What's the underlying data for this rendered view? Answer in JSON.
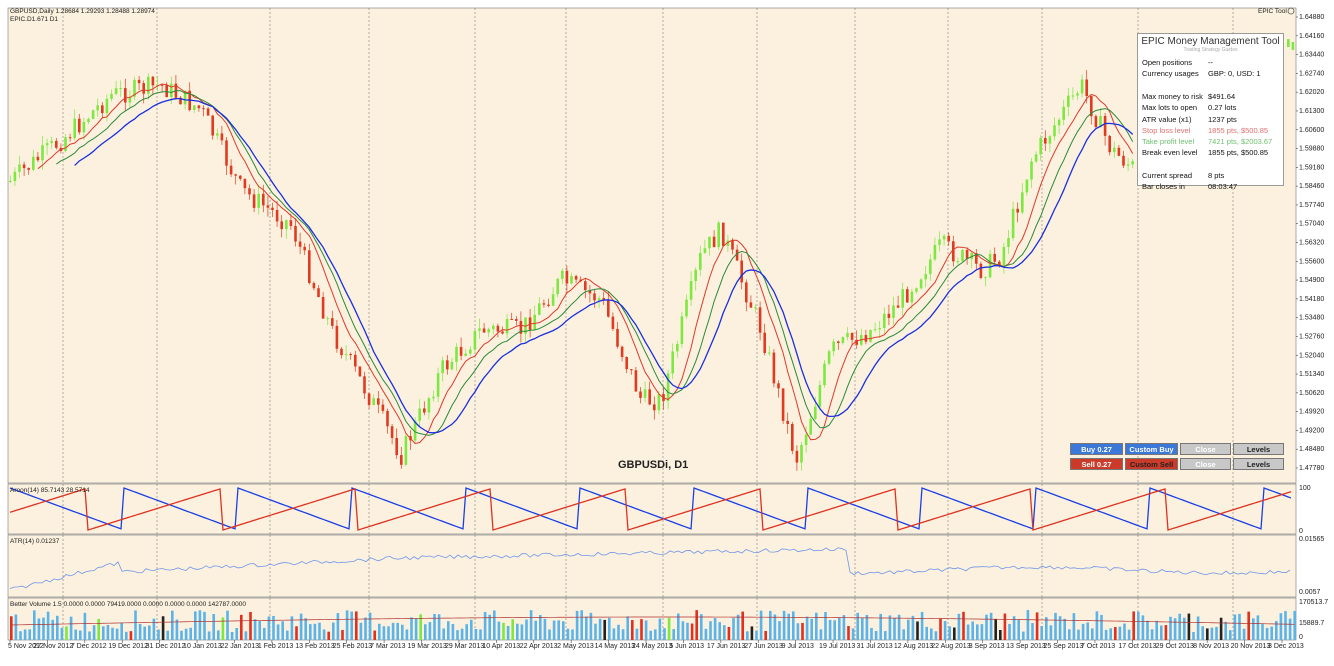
{
  "header": {
    "symbol_line": "GBPUSD,Daily 1.28684 1.29293 1.28488 1.28974",
    "indicator_line": "EPIC.D1.671 D1",
    "tool_label": "EPIC Tool"
  },
  "watermark": "GBPUSDi, D1",
  "price_axis": [
    "1.64880",
    "1.64160",
    "1.63440",
    "1.62740",
    "1.62020",
    "1.61300",
    "1.60600",
    "1.59880",
    "1.59180",
    "1.58460",
    "1.57740",
    "1.57040",
    "1.56320",
    "1.55600",
    "1.54900",
    "1.54180",
    "1.53480",
    "1.52760",
    "1.52040",
    "1.51340",
    "1.50620",
    "1.49920",
    "1.49200",
    "1.48480",
    "1.47780"
  ],
  "aroon": {
    "label": "Aroon(14) 85.7143 28.5714",
    "axis_top": "100",
    "axis_bottom": "0",
    "colors": {
      "up": "#1a3fe6",
      "down": "#e03020"
    }
  },
  "atr": {
    "label": "ATR(14) 0.01237",
    "axis_top": "0.01565",
    "axis_bottom": "0.0057",
    "color": "#6f95e8"
  },
  "volume": {
    "label": "Better Volume 1.5 0.0000 0.0000 79419.0000 0.0000 0.0000 0.0000 142787.0000",
    "axis_top": "170513.7",
    "axis_mid": "15889.7",
    "axis_bottom": "0"
  },
  "date_axis": [
    "5 Nov 2012",
    "27 Nov 2012",
    "7 Dec 2012",
    "19 Dec 2012",
    "31 Dec 2012",
    "10 Jan 2013",
    "22 Jan 2013",
    "1 Feb 2013",
    "13 Feb 2013",
    "25 Feb 2013",
    "7 Mar 2013",
    "19 Mar 2013",
    "29 Mar 2013",
    "10 Apr 2013",
    "22 Apr 2013",
    "2 May 2013",
    "14 May 2013",
    "24 May 2013",
    "5 Jun 2013",
    "17 Jun 2013",
    "27 Jun 2013",
    "9 Jul 2013",
    "19 Jul 2013",
    "31 Jul 2013",
    "12 Aug 2013",
    "22 Aug 2013",
    "3 Sep 2013",
    "13 Sep 2013",
    "25 Sep 2013",
    "7 Oct 2013",
    "17 Oct 2013",
    "29 Oct 2013",
    "8 Nov 2013",
    "20 Nov 2013",
    "3 Dec 2013"
  ],
  "money_tool": {
    "title": "EPIC Money Management Tool",
    "subtitle": "Trading Strategy Guides",
    "rows": [
      {
        "key": "Open positions",
        "value": "--",
        "color": "#111111"
      },
      {
        "key": "Currency usages",
        "value": "GBP: 0, USD: 1",
        "color": "#111111"
      },
      {
        "key": "",
        "value": "",
        "color": "#111111"
      },
      {
        "key": "Max money to risk",
        "value": "$491.64",
        "color": "#111111"
      },
      {
        "key": "Max lots to open",
        "value": "0.27 lots",
        "color": "#111111"
      },
      {
        "key": "ATR value (x1)",
        "value": "1237 pts",
        "color": "#111111"
      },
      {
        "key": "Stop loss level",
        "value": "1855 pts, $500.85",
        "color": "#e07070"
      },
      {
        "key": "Take profit level",
        "value": "7421 pts, $2003.67",
        "color": "#6fbf6f"
      },
      {
        "key": "Break even level",
        "value": "1855 pts, $500.85",
        "color": "#111111"
      },
      {
        "key": "",
        "value": "",
        "color": "#111111"
      },
      {
        "key": "Current spread",
        "value": "8 pts",
        "color": "#111111"
      },
      {
        "key": "Bar closes in",
        "value": "08:03:47",
        "color": "#111111"
      }
    ]
  },
  "trade_buttons": {
    "buy": "Buy 0.27",
    "custom_buy": "Custom Buy",
    "close_top": "Close",
    "levels_top": "Levels",
    "sell": "Sell 0.27",
    "custom_sell": "Custom Sell",
    "close_bottom": "Close",
    "levels_bottom": "Levels"
  },
  "colors": {
    "background": "#fbf1de",
    "bull": "#7de840",
    "bear": "#e03a20",
    "ma_fast": "#e03a2a",
    "ma_slow": "#2a8a3a",
    "ma_blue": "#1a2fe0",
    "buy_btn": "#3c78d8",
    "sell_btn": "#cc3a2a",
    "gray_btn": "#c8c8c8"
  }
}
